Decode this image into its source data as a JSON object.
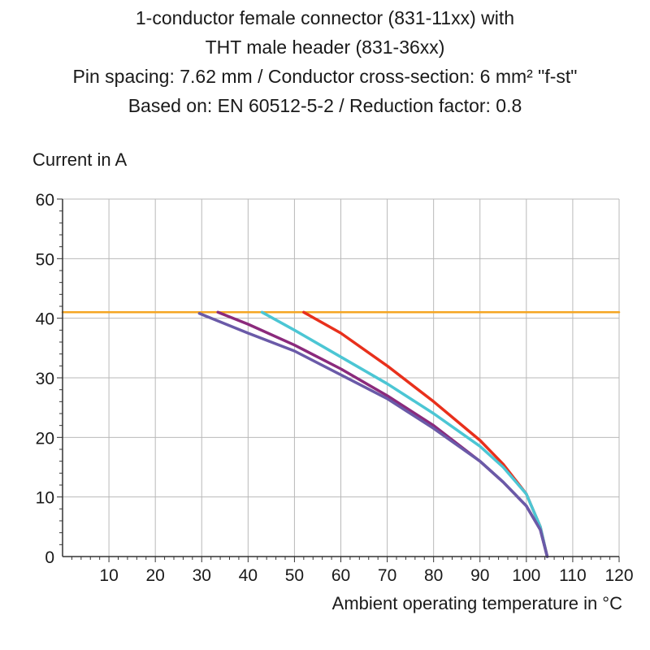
{
  "header": {
    "lines": [
      "1-conductor female connector (831-11xx) with",
      "THT male header (831-36xx)",
      "Pin spacing: 7.62 mm / Conductor cross-section: 6 mm² \"f-st\"",
      "Based on: EN 60512-5-2 / Reduction factor: 0.8"
    ]
  },
  "chart_data": {
    "type": "line",
    "title": "",
    "xlabel": "Ambient operating temperature in °C",
    "ylabel": "Current in A",
    "xlim": [
      0,
      120
    ],
    "ylim": [
      0,
      60
    ],
    "xticks": [
      10,
      20,
      30,
      40,
      50,
      60,
      70,
      80,
      90,
      100,
      110,
      120
    ],
    "yticks": [
      0,
      10,
      20,
      30,
      40,
      50,
      60
    ],
    "grid": true,
    "legend": "none",
    "series": [
      {
        "color": "#f5a623",
        "x": [
          0,
          120
        ],
        "y": [
          41,
          41
        ]
      },
      {
        "color": "#e8301c",
        "x": [
          52,
          60,
          70,
          80,
          90,
          95,
          100,
          103,
          104.5
        ],
        "y": [
          41,
          37.5,
          32,
          26,
          19.5,
          15.5,
          10.5,
          5,
          0
        ]
      },
      {
        "color": "#4cc6d4",
        "x": [
          43,
          50,
          60,
          70,
          80,
          90,
          95,
          100,
          103,
          104.5
        ],
        "y": [
          41,
          38,
          33.5,
          29,
          24,
          18.5,
          15,
          10.5,
          5,
          0
        ]
      },
      {
        "color": "#8b2a7c",
        "x": [
          33.5,
          40,
          50,
          60,
          70,
          80,
          90,
          95,
          100,
          103,
          104.5
        ],
        "y": [
          41,
          39,
          35.5,
          31.5,
          27,
          22,
          16,
          12.5,
          8.5,
          4.5,
          0
        ]
      },
      {
        "color": "#6a5aa8",
        "x": [
          29.5,
          40,
          50,
          60,
          70,
          80,
          90,
          95,
          100,
          103,
          104.5
        ],
        "y": [
          40.8,
          37.5,
          34.5,
          30.5,
          26.5,
          21.5,
          16,
          12.5,
          8.5,
          4.5,
          0
        ]
      }
    ]
  }
}
